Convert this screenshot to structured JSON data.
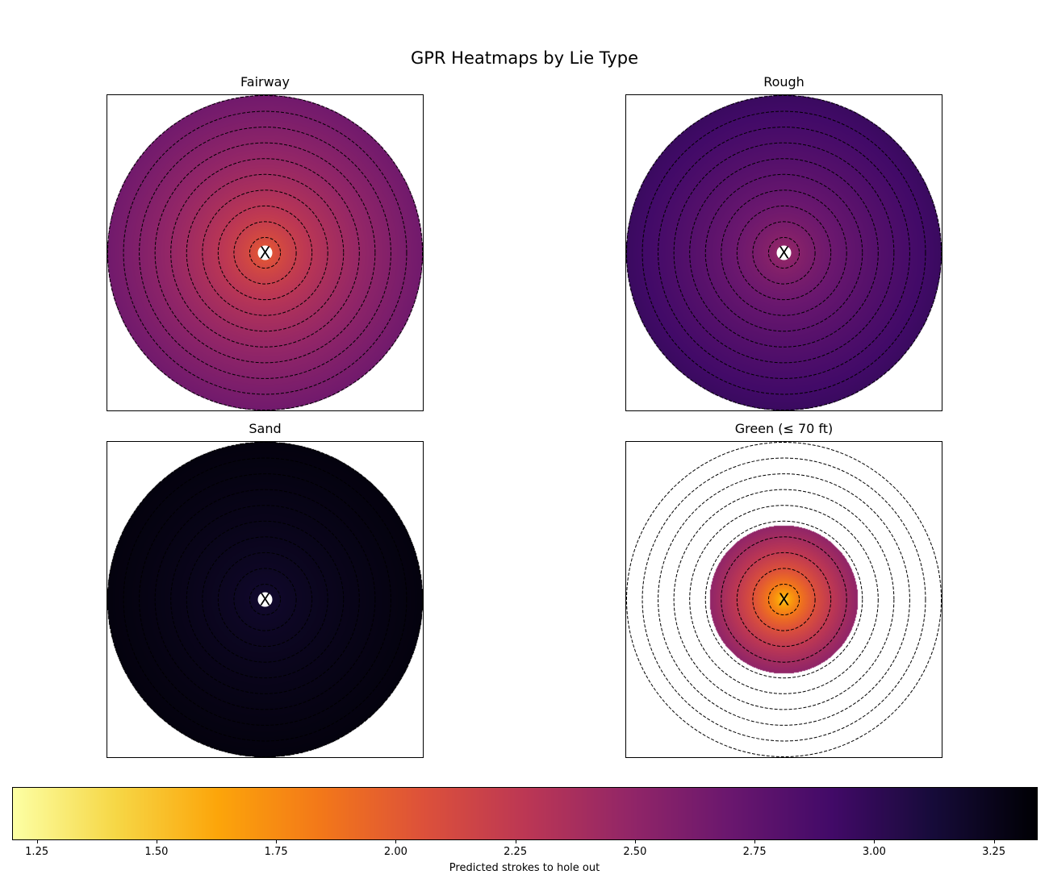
{
  "title": "GPR Heatmaps by Lie Type",
  "colorbar": {
    "label": "Predicted strokes to hole out",
    "min": 1.2,
    "max": 3.34,
    "ticks": [
      "1.25",
      "1.50",
      "1.75",
      "2.00",
      "2.25",
      "2.50",
      "2.75",
      "3.00",
      "3.25"
    ],
    "colormap": "inferno"
  },
  "chart_data": [
    {
      "type": "heatmap",
      "title": "Fairway",
      "hole_marker": "X",
      "ring_count": 10,
      "value_center": 1.9,
      "value_edge": 2.66,
      "coverage_radius_fraction": 1.0
    },
    {
      "type": "heatmap",
      "title": "Rough",
      "hole_marker": "X",
      "ring_count": 10,
      "value_center": 2.4,
      "value_edge": 2.95,
      "coverage_radius_fraction": 1.0
    },
    {
      "type": "heatmap",
      "title": "Sand",
      "hole_marker": "X",
      "ring_count": 10,
      "value_center": 3.15,
      "value_edge": 3.3,
      "coverage_radius_fraction": 1.0
    },
    {
      "type": "heatmap",
      "title": "Green (≤ 70 ft)",
      "hole_marker": "X",
      "ring_count": 10,
      "value_center": 1.35,
      "value_edge": 2.5,
      "coverage_radius_fraction": 0.47
    }
  ]
}
